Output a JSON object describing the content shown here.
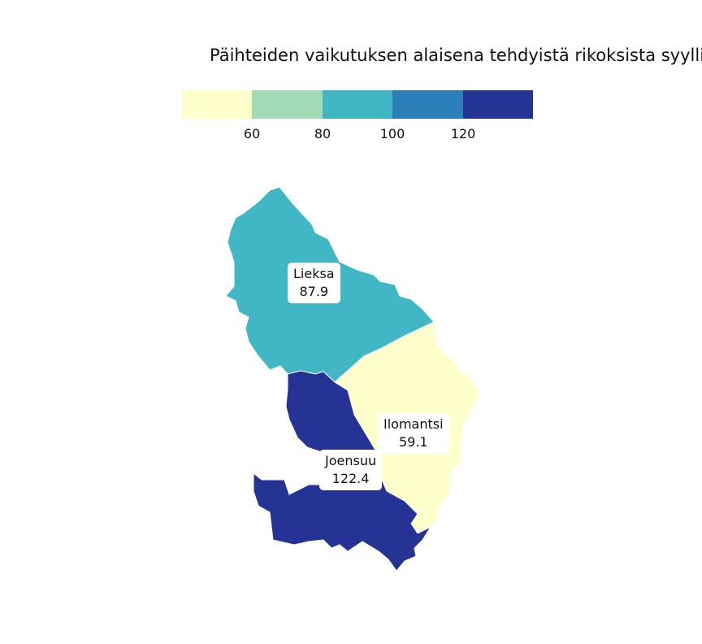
{
  "title": "Päihteiden vaikutuksen alaisena tehdyistä rikoksista syyllis",
  "legend": {
    "colors": [
      "#ffffcc",
      "#a1dab4",
      "#41b6c4",
      "#2c7fb8",
      "#253494"
    ],
    "ticks": [
      "60",
      "80",
      "100",
      "120"
    ]
  },
  "regions": [
    {
      "name": "Lieksa",
      "value": "87.9",
      "color": "#41b6c4"
    },
    {
      "name": "Ilomantsi",
      "value": "59.1",
      "color": "#ffffcc"
    },
    {
      "name": "Joensuu",
      "value": "122.4",
      "color": "#253494"
    }
  ]
}
